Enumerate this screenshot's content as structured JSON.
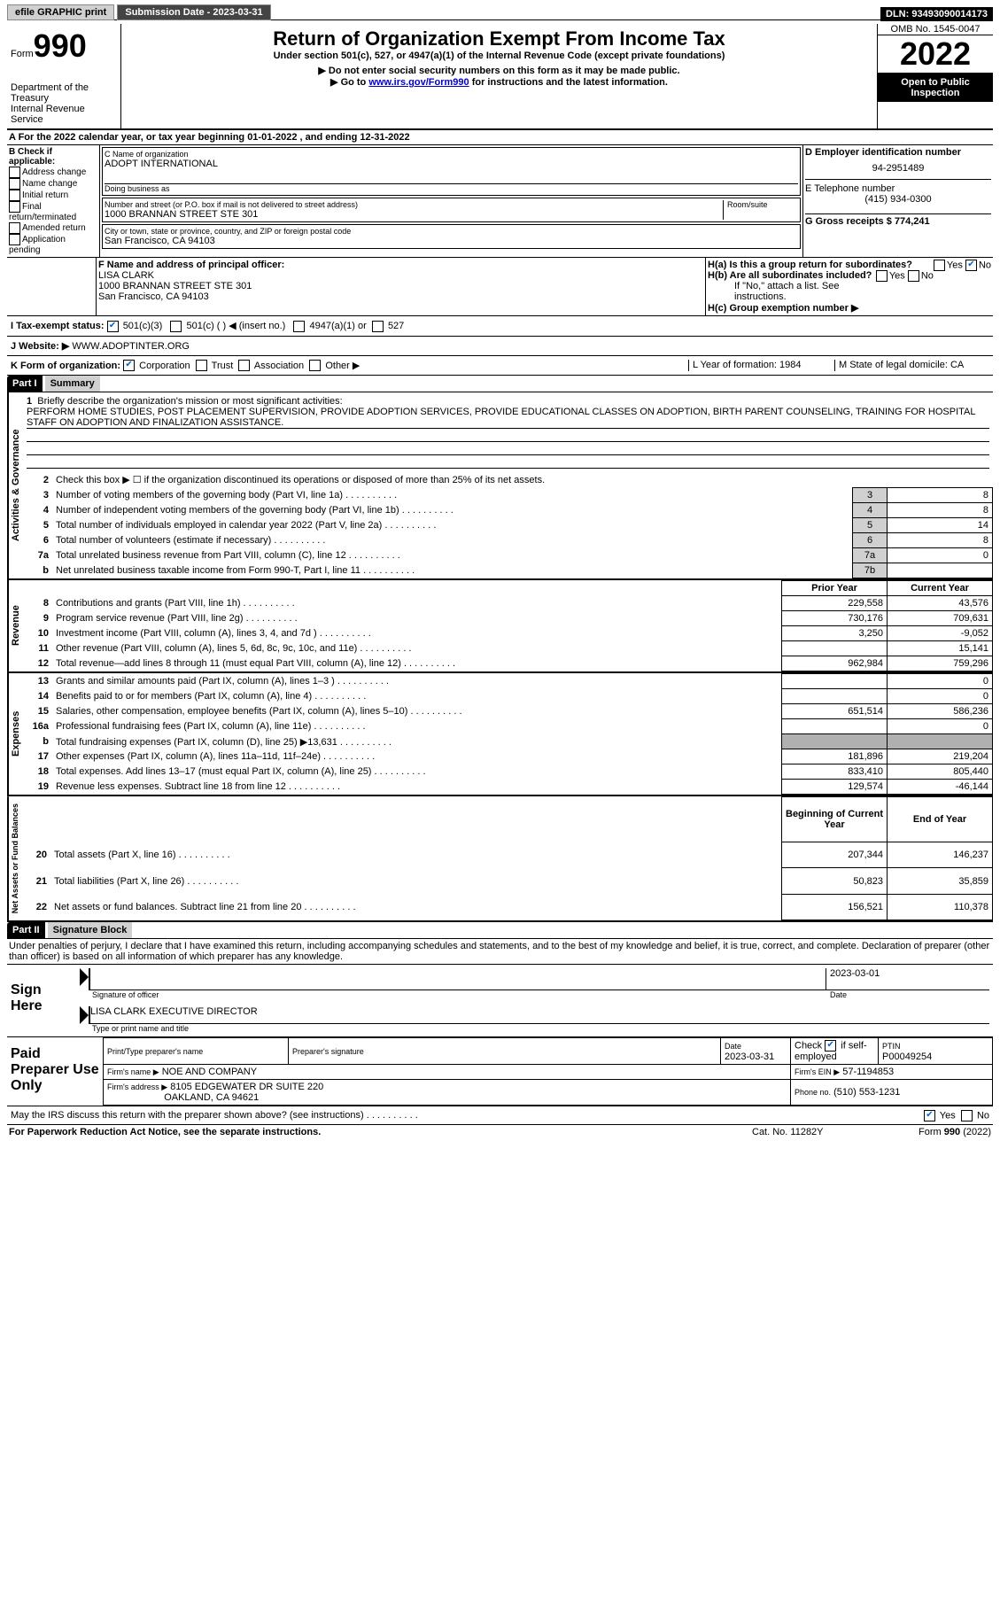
{
  "topbar": {
    "efile": "efile GRAPHIC print",
    "submission_label": "Submission Date - 2023-03-31",
    "dln": "DLN: 93493090014173"
  },
  "header": {
    "form_label": "Form",
    "form_number": "990",
    "dept": "Department of the Treasury",
    "irs": "Internal Revenue Service",
    "title": "Return of Organization Exempt From Income Tax",
    "subtitle": "Under section 501(c), 527, or 4947(a)(1) of the Internal Revenue Code (except private foundations)",
    "note1": "▶ Do not enter social security numbers on this form as it may be made public.",
    "note2_prefix": "▶ Go to ",
    "note2_link": "www.irs.gov/Form990",
    "note2_suffix": " for instructions and the latest information.",
    "omb": "OMB No. 1545-0047",
    "year": "2022",
    "open": "Open to Public Inspection"
  },
  "section_a": {
    "line": "A For the 2022 calendar year, or tax year beginning 01-01-2022    , and ending 12-31-2022",
    "b_label": "B Check if applicable:",
    "b_options": [
      "Address change",
      "Name change",
      "Initial return",
      "Final return/terminated",
      "Amended return",
      "Application pending"
    ],
    "c_name_label": "C Name of organization",
    "c_name": "ADOPT INTERNATIONAL",
    "dba_label": "Doing business as",
    "addr_label": "Number and street (or P.O. box if mail is not delivered to street address)",
    "addr": "1000 BRANNAN STREET STE 301",
    "room_label": "Room/suite",
    "city_label": "City or town, state or province, country, and ZIP or foreign postal code",
    "city": "San Francisco, CA  94103",
    "d_label": "D Employer identification number",
    "d_val": "94-2951489",
    "e_label": "E Telephone number",
    "e_val": "(415) 934-0300",
    "g_label": "G Gross receipts $ 774,241",
    "f_label": "F Name and address of principal officer:",
    "f_name": "LISA CLARK",
    "f_addr1": "1000 BRANNAN STREET STE 301",
    "f_addr2": "San Francisco, CA  94103",
    "ha_label": "H(a)  Is this a group return for subordinates?",
    "hb_label": "H(b)  Are all subordinates included?",
    "hb_note": "If \"No,\" attach a list. See instructions.",
    "hc_label": "H(c)  Group exemption number ▶",
    "yes": "Yes",
    "no": "No"
  },
  "tax_status": {
    "i_label": "I    Tax-exempt status:",
    "opt1": "501(c)(3)",
    "opt2": "501(c) (   ) ◀ (insert no.)",
    "opt3": "4947(a)(1) or",
    "opt4": "527",
    "j_label": "J    Website: ▶",
    "j_val": "  WWW.ADOPTINTER.ORG"
  },
  "k_line": {
    "k_label": "K Form of organization:",
    "opts": [
      "Corporation",
      "Trust",
      "Association",
      "Other ▶"
    ],
    "l_label": "L Year of formation: 1984",
    "m_label": "M State of legal domicile: CA"
  },
  "part1": {
    "header": "Part I",
    "title": "Summary",
    "line1_label": "Briefly describe the organization's mission or most significant activities:",
    "line1_text": "PERFORM HOME STUDIES, POST PLACEMENT SUPERVISION, PROVIDE ADOPTION SERVICES, PROVIDE EDUCATIONAL CLASSES ON ADOPTION, BIRTH PARENT COUNSELING, TRAINING FOR HOSPITAL STAFF ON ADOPTION AND FINALIZATION ASSISTANCE.",
    "groups": {
      "activities": "Activities & Governance",
      "revenue": "Revenue",
      "expenses": "Expenses",
      "netassets": "Net Assets or Fund Balances"
    },
    "rows_ag": [
      {
        "n": "2",
        "label": "Check this box ▶ ☐  if the organization discontinued its operations or disposed of more than 25% of its net assets."
      },
      {
        "n": "3",
        "label": "Number of voting members of the governing body (Part VI, line 1a)",
        "box": "3",
        "val": "8"
      },
      {
        "n": "4",
        "label": "Number of independent voting members of the governing body (Part VI, line 1b)",
        "box": "4",
        "val": "8"
      },
      {
        "n": "5",
        "label": "Total number of individuals employed in calendar year 2022 (Part V, line 2a)",
        "box": "5",
        "val": "14"
      },
      {
        "n": "6",
        "label": "Total number of volunteers (estimate if necessary)",
        "box": "6",
        "val": "8"
      },
      {
        "n": "7a",
        "label": "Total unrelated business revenue from Part VIII, column (C), line 12",
        "box": "7a",
        "val": "0"
      },
      {
        "n": "b",
        "label": "Net unrelated business taxable income from Form 990-T, Part I, line 11",
        "box": "7b",
        "val": ""
      }
    ],
    "col_headers": {
      "prior": "Prior Year",
      "current": "Current Year",
      "begin": "Beginning of Current Year",
      "end": "End of Year"
    },
    "rows_rev": [
      {
        "n": "8",
        "label": "Contributions and grants (Part VIII, line 1h)",
        "prior": "229,558",
        "curr": "43,576"
      },
      {
        "n": "9",
        "label": "Program service revenue (Part VIII, line 2g)",
        "prior": "730,176",
        "curr": "709,631"
      },
      {
        "n": "10",
        "label": "Investment income (Part VIII, column (A), lines 3, 4, and 7d )",
        "prior": "3,250",
        "curr": "-9,052"
      },
      {
        "n": "11",
        "label": "Other revenue (Part VIII, column (A), lines 5, 6d, 8c, 9c, 10c, and 11e)",
        "prior": "",
        "curr": "15,141"
      },
      {
        "n": "12",
        "label": "Total revenue—add lines 8 through 11 (must equal Part VIII, column (A), line 12)",
        "prior": "962,984",
        "curr": "759,296"
      }
    ],
    "rows_exp": [
      {
        "n": "13",
        "label": "Grants and similar amounts paid (Part IX, column (A), lines 1–3 )",
        "prior": "",
        "curr": "0"
      },
      {
        "n": "14",
        "label": "Benefits paid to or for members (Part IX, column (A), line 4)",
        "prior": "",
        "curr": "0"
      },
      {
        "n": "15",
        "label": "Salaries, other compensation, employee benefits (Part IX, column (A), lines 5–10)",
        "prior": "651,514",
        "curr": "586,236"
      },
      {
        "n": "16a",
        "label": "Professional fundraising fees (Part IX, column (A), line 11e)",
        "prior": "",
        "curr": "0"
      },
      {
        "n": "b",
        "label": "Total fundraising expenses (Part IX, column (D), line 25) ▶13,631",
        "prior": "SHADE",
        "curr": "SHADE"
      },
      {
        "n": "17",
        "label": "Other expenses (Part IX, column (A), lines 11a–11d, 11f–24e)",
        "prior": "181,896",
        "curr": "219,204"
      },
      {
        "n": "18",
        "label": "Total expenses. Add lines 13–17 (must equal Part IX, column (A), line 25)",
        "prior": "833,410",
        "curr": "805,440"
      },
      {
        "n": "19",
        "label": "Revenue less expenses. Subtract line 18 from line 12",
        "prior": "129,574",
        "curr": "-46,144"
      }
    ],
    "rows_na": [
      {
        "n": "20",
        "label": "Total assets (Part X, line 16)",
        "prior": "207,344",
        "curr": "146,237"
      },
      {
        "n": "21",
        "label": "Total liabilities (Part X, line 26)",
        "prior": "50,823",
        "curr": "35,859"
      },
      {
        "n": "22",
        "label": "Net assets or fund balances. Subtract line 21 from line 20",
        "prior": "156,521",
        "curr": "110,378"
      }
    ]
  },
  "part2": {
    "header": "Part II",
    "title": "Signature Block",
    "declaration": "Under penalties of perjury, I declare that I have examined this return, including accompanying schedules and statements, and to the best of my knowledge and belief, it is true, correct, and complete. Declaration of preparer (other than officer) is based on all information of which preparer has any knowledge.",
    "sign_here": "Sign Here",
    "sig_officer": "Signature of officer",
    "sig_date": "2023-03-01",
    "date_label": "Date",
    "officer_name": "LISA CLARK  EXECUTIVE DIRECTOR",
    "type_name": "Type or print name and title",
    "paid_label": "Paid Preparer Use Only",
    "print_name_label": "Print/Type preparer's name",
    "prep_sig_label": "Preparer's signature",
    "prep_date_label": "Date",
    "prep_date": "2023-03-31",
    "check_if": "Check ☑ if self-employed",
    "ptin_label": "PTIN",
    "ptin": "P00049254",
    "firm_name_label": "Firm's name    ▶",
    "firm_name": "NOE AND COMPANY",
    "firm_ein_label": "Firm's EIN ▶",
    "firm_ein": "57-1194853",
    "firm_addr_label": "Firm's address ▶",
    "firm_addr1": "8105 EDGEWATER DR SUITE 220",
    "firm_addr2": "OAKLAND, CA  94621",
    "phone_label": "Phone no.",
    "phone": "(510) 553-1231",
    "may_irs": "May the IRS discuss this return with the preparer shown above? (see instructions)"
  },
  "footer": {
    "paperwork": "For Paperwork Reduction Act Notice, see the separate instructions.",
    "cat": "Cat. No. 11282Y",
    "form": "Form 990 (2022)"
  }
}
